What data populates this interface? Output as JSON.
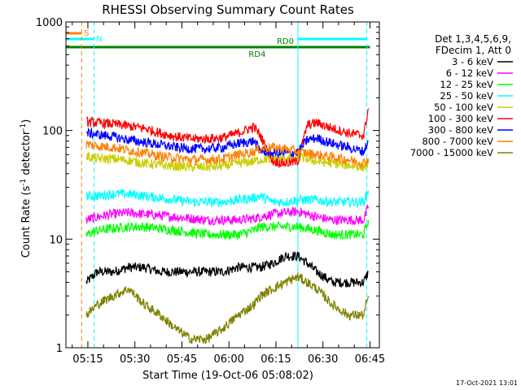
{
  "chart_data": {
    "type": "line",
    "title": "RHESSI Observing Summary Count Rates",
    "xlabel": "Start Time (19-Oct-06 05:08:02)",
    "ylabel_main": "Count Rate (s",
    "ylabel_sup1": "-1",
    "ylabel_mid": " detector",
    "ylabel_sup2": "-1",
    "ylabel_end": ")",
    "y_scale": "log",
    "ylim": [
      1,
      1000
    ],
    "xlim_minutes": [
      0,
      100
    ],
    "x_ticks": [
      {
        "label": "05:15",
        "minutes": 7
      },
      {
        "label": "05:30",
        "minutes": 22
      },
      {
        "label": "05:45",
        "minutes": 37
      },
      {
        "label": "06:00",
        "minutes": 52
      },
      {
        "label": "06:15",
        "minutes": 67
      },
      {
        "label": "06:30",
        "minutes": 82
      },
      {
        "label": "06:45",
        "minutes": 97
      }
    ],
    "y_ticks": [
      {
        "label": "1",
        "value": 1
      },
      {
        "label": "10",
        "value": 10
      },
      {
        "label": "100",
        "value": 100
      },
      {
        "label": "1000",
        "value": 1000
      }
    ],
    "legend_header": [
      "Det 1,3,4,5,6,9,",
      "FDecim 1, Att 0"
    ],
    "footer_date": "17-Oct-2021 13:01",
    "flags": [
      {
        "label": "S",
        "color": "#ff8000",
        "segments": [
          [
            0,
            5
          ]
        ]
      },
      {
        "label": "N",
        "color": "#00ffff",
        "segments": [
          [
            0,
            9
          ],
          [
            74,
            96
          ]
        ]
      },
      {
        "label": "RD0",
        "color": "#008000",
        "segments": [
          [
            0,
            74
          ],
          [
            74,
            97
          ]
        ]
      },
      {
        "label": "RD4",
        "color": "#008000",
        "segments": []
      }
    ],
    "vertical_lines": [
      {
        "minutes": 0,
        "color": "#00ffff",
        "style": "solid"
      },
      {
        "minutes": 5,
        "color": "#ff8000",
        "style": "dashed"
      },
      {
        "minutes": 9,
        "color": "#00ffff",
        "style": "dashed"
      },
      {
        "minutes": 74,
        "color": "#00ffff",
        "style": "solid"
      },
      {
        "minutes": 96,
        "color": "#00ffff",
        "style": "dashed"
      }
    ],
    "series": [
      {
        "name": "3 - 6 keV",
        "color": "#000000",
        "points": [
          [
            6.5,
            4
          ],
          [
            10,
            5
          ],
          [
            15,
            5
          ],
          [
            20,
            5.5
          ],
          [
            25,
            5.5
          ],
          [
            30,
            5
          ],
          [
            35,
            5
          ],
          [
            40,
            5
          ],
          [
            45,
            5
          ],
          [
            50,
            5
          ],
          [
            55,
            5.5
          ],
          [
            60,
            5.5
          ],
          [
            62,
            5.5
          ],
          [
            66,
            6
          ],
          [
            70,
            7
          ],
          [
            74,
            7
          ],
          [
            77,
            6
          ],
          [
            80,
            5
          ],
          [
            85,
            4
          ],
          [
            90,
            4
          ],
          [
            95,
            4
          ],
          [
            96.5,
            5
          ]
        ]
      },
      {
        "name": "6 - 12 keV",
        "color": "#ff00ff",
        "points": [
          [
            6.5,
            15
          ],
          [
            10,
            16
          ],
          [
            15,
            17
          ],
          [
            20,
            17.5
          ],
          [
            25,
            17
          ],
          [
            30,
            16.5
          ],
          [
            35,
            16
          ],
          [
            40,
            15.5
          ],
          [
            45,
            15
          ],
          [
            50,
            15
          ],
          [
            55,
            15
          ],
          [
            60,
            15.5
          ],
          [
            62,
            16
          ],
          [
            66,
            17
          ],
          [
            70,
            17.5
          ],
          [
            74,
            18
          ],
          [
            77,
            17
          ],
          [
            80,
            16
          ],
          [
            85,
            15
          ],
          [
            90,
            15
          ],
          [
            95,
            15
          ],
          [
            96.5,
            20
          ]
        ]
      },
      {
        "name": "12 - 25 keV",
        "color": "#00ff00",
        "points": [
          [
            6.5,
            11
          ],
          [
            10,
            12
          ],
          [
            15,
            12.5
          ],
          [
            20,
            13
          ],
          [
            25,
            13
          ],
          [
            30,
            12.5
          ],
          [
            35,
            12
          ],
          [
            40,
            11.5
          ],
          [
            45,
            11
          ],
          [
            50,
            11
          ],
          [
            55,
            11
          ],
          [
            60,
            12
          ],
          [
            62,
            13
          ],
          [
            66,
            13
          ],
          [
            70,
            13
          ],
          [
            74,
            13
          ],
          [
            77,
            12.5
          ],
          [
            80,
            12
          ],
          [
            85,
            11
          ],
          [
            90,
            11
          ],
          [
            95,
            11
          ],
          [
            96.5,
            15
          ]
        ]
      },
      {
        "name": "25 - 50 keV",
        "color": "#00ffff",
        "points": [
          [
            6.5,
            25
          ],
          [
            10,
            25
          ],
          [
            15,
            26
          ],
          [
            20,
            26
          ],
          [
            25,
            25
          ],
          [
            30,
            24
          ],
          [
            35,
            23
          ],
          [
            40,
            22
          ],
          [
            45,
            22
          ],
          [
            50,
            22
          ],
          [
            55,
            23
          ],
          [
            60,
            24
          ],
          [
            62,
            25
          ],
          [
            66,
            22
          ],
          [
            70,
            22
          ],
          [
            74,
            23
          ],
          [
            77,
            23
          ],
          [
            80,
            23
          ],
          [
            85,
            22
          ],
          [
            90,
            22
          ],
          [
            95,
            22
          ],
          [
            96.5,
            28
          ]
        ]
      },
      {
        "name": "50 - 100 keV",
        "color": "#cccc00",
        "points": [
          [
            6.5,
            58
          ],
          [
            10,
            55
          ],
          [
            15,
            55
          ],
          [
            20,
            53
          ],
          [
            25,
            50
          ],
          [
            30,
            48
          ],
          [
            35,
            47
          ],
          [
            40,
            46
          ],
          [
            45,
            46
          ],
          [
            50,
            47
          ],
          [
            55,
            50
          ],
          [
            60,
            52
          ],
          [
            62,
            54
          ],
          [
            66,
            55
          ],
          [
            70,
            56
          ],
          [
            74,
            57
          ],
          [
            77,
            55
          ],
          [
            80,
            52
          ],
          [
            85,
            50
          ],
          [
            90,
            48
          ],
          [
            95,
            46
          ],
          [
            96.5,
            50
          ]
        ]
      },
      {
        "name": "100 - 300 keV",
        "color": "#ff0000",
        "points": [
          [
            6.5,
            120
          ],
          [
            10,
            118
          ],
          [
            15,
            115
          ],
          [
            20,
            110
          ],
          [
            25,
            105
          ],
          [
            30,
            95
          ],
          [
            35,
            88
          ],
          [
            40,
            84
          ],
          [
            45,
            84
          ],
          [
            50,
            86
          ],
          [
            55,
            95
          ],
          [
            60,
            108
          ],
          [
            62,
            90
          ],
          [
            66,
            52
          ],
          [
            70,
            50
          ],
          [
            74,
            52
          ],
          [
            77,
            112
          ],
          [
            80,
            118
          ],
          [
            85,
            105
          ],
          [
            90,
            95
          ],
          [
            95,
            90
          ],
          [
            96.5,
            160
          ]
        ]
      },
      {
        "name": "300 - 800 keV",
        "color": "#0000ff",
        "points": [
          [
            6.5,
            95
          ],
          [
            10,
            92
          ],
          [
            15,
            88
          ],
          [
            20,
            82
          ],
          [
            25,
            78
          ],
          [
            30,
            74
          ],
          [
            35,
            70
          ],
          [
            40,
            68
          ],
          [
            45,
            68
          ],
          [
            50,
            70
          ],
          [
            55,
            76
          ],
          [
            60,
            80
          ],
          [
            62,
            66
          ],
          [
            66,
            62
          ],
          [
            70,
            62
          ],
          [
            74,
            63
          ],
          [
            77,
            82
          ],
          [
            80,
            85
          ],
          [
            85,
            76
          ],
          [
            90,
            70
          ],
          [
            95,
            64
          ],
          [
            96.5,
            80
          ]
        ]
      },
      {
        "name": "800 - 7000 keV",
        "color": "#ff8000",
        "points": [
          [
            6.5,
            75
          ],
          [
            10,
            72
          ],
          [
            15,
            70
          ],
          [
            20,
            66
          ],
          [
            25,
            62
          ],
          [
            30,
            58
          ],
          [
            35,
            56
          ],
          [
            40,
            54
          ],
          [
            45,
            54
          ],
          [
            50,
            55
          ],
          [
            55,
            60
          ],
          [
            60,
            64
          ],
          [
            62,
            68
          ],
          [
            66,
            70
          ],
          [
            70,
            68
          ],
          [
            74,
            64
          ],
          [
            77,
            62
          ],
          [
            80,
            60
          ],
          [
            85,
            57
          ],
          [
            90,
            54
          ],
          [
            95,
            50
          ],
          [
            96.5,
            55
          ]
        ]
      },
      {
        "name": "7000 - 15000 keV",
        "color": "#808000",
        "points": [
          [
            6.5,
            2
          ],
          [
            10,
            2.5
          ],
          [
            15,
            3
          ],
          [
            20,
            3.5
          ],
          [
            25,
            2.5
          ],
          [
            30,
            2
          ],
          [
            35,
            1.5
          ],
          [
            40,
            1.2
          ],
          [
            45,
            1.2
          ],
          [
            50,
            1.5
          ],
          [
            55,
            2
          ],
          [
            60,
            2.5
          ],
          [
            62,
            3
          ],
          [
            66,
            3.5
          ],
          [
            70,
            4
          ],
          [
            74,
            4.5
          ],
          [
            77,
            4
          ],
          [
            80,
            3.5
          ],
          [
            85,
            2.5
          ],
          [
            90,
            2
          ],
          [
            95,
            2
          ],
          [
            96.5,
            3
          ]
        ]
      }
    ]
  }
}
